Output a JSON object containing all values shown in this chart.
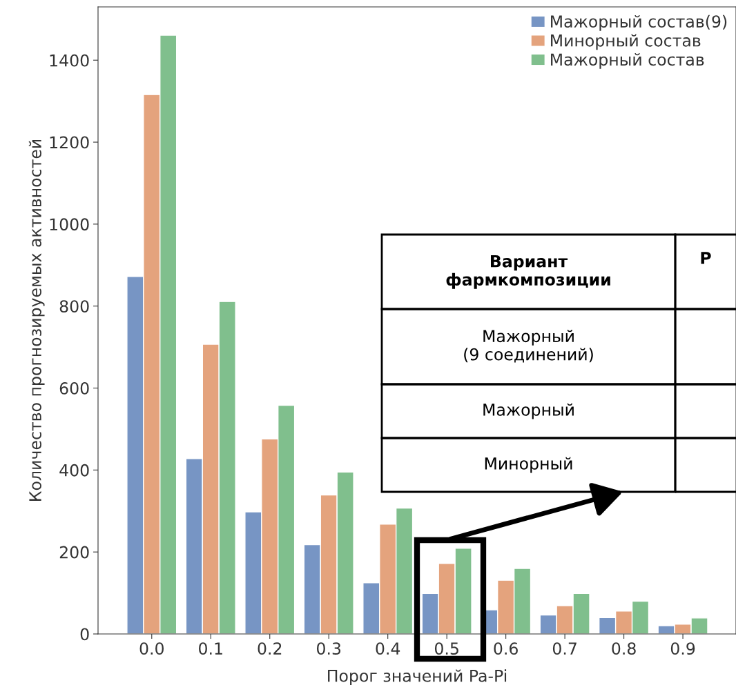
{
  "chart_data": {
    "type": "bar",
    "xlabel": "Порог значений Pa-Pi",
    "ylabel": "Количество прогнозируемых активностей",
    "categories": [
      "0.0",
      "0.1",
      "0.2",
      "0.3",
      "0.4",
      "0.5",
      "0.6",
      "0.7",
      "0.8",
      "0.9"
    ],
    "series": [
      {
        "name": "Мажорный состав(9)",
        "color": "#7795c4",
        "values": [
          872,
          428,
          298,
          218,
          125,
          99,
          59,
          46,
          40,
          20
        ]
      },
      {
        "name": "Минорный состав",
        "color": "#e4a37d",
        "values": [
          1316,
          707,
          476,
          339,
          268,
          172,
          131,
          69,
          56,
          24
        ]
      },
      {
        "name": "Мажорный состав",
        "color": "#80bf8d",
        "values": [
          1461,
          811,
          558,
          395,
          307,
          209,
          160,
          99,
          80,
          39
        ]
      }
    ],
    "ylim": [
      0,
      1530
    ],
    "yticks": [
      0,
      200,
      400,
      600,
      800,
      1000,
      1200,
      1400
    ],
    "grid": false,
    "legend": "top right",
    "annotations": [
      "Вариант\nфармкомпозиции",
      "Р",
      "Мажорный\n(9 соединений)",
      "Мажорный",
      "Минорный"
    ]
  }
}
